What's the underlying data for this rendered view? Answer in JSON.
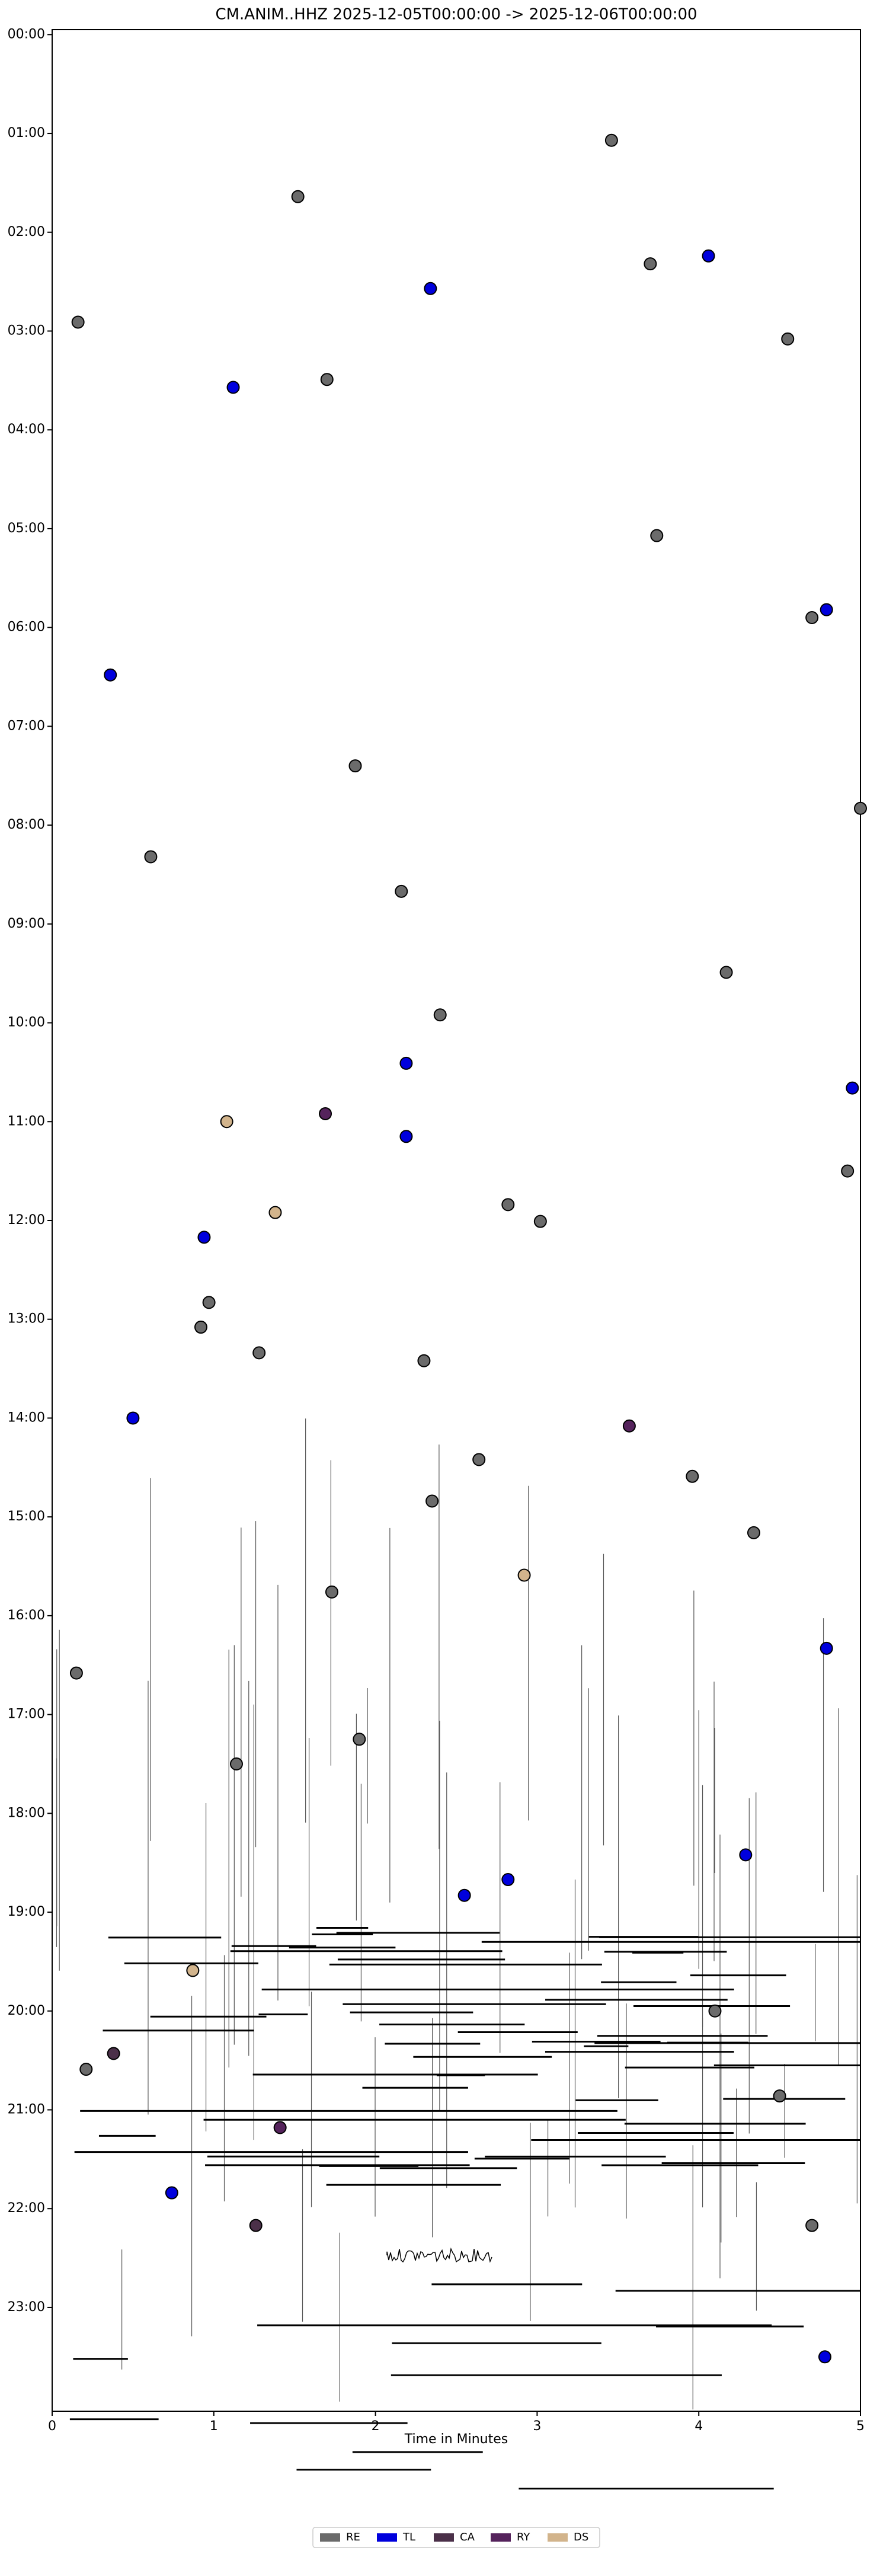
{
  "chart_data": {
    "type": "scatter",
    "title": "CM.ANIM..HHZ  2025-12-05T00:00:00 -> 2025-12-06T00:00:00",
    "x_label": "Time in Minutes",
    "xlim": [
      0,
      5
    ],
    "xticks": [
      0,
      1,
      2,
      3,
      4,
      5
    ],
    "ylim": [
      24.05,
      -0.05
    ],
    "yticks": [
      {
        "value": 0,
        "label": "00:00"
      },
      {
        "value": 1,
        "label": "01:00"
      },
      {
        "value": 2,
        "label": "02:00"
      },
      {
        "value": 3,
        "label": "03:00"
      },
      {
        "value": 4,
        "label": "04:00"
      },
      {
        "value": 5,
        "label": "05:00"
      },
      {
        "value": 6,
        "label": "06:00"
      },
      {
        "value": 7,
        "label": "07:00"
      },
      {
        "value": 8,
        "label": "08:00"
      },
      {
        "value": 9,
        "label": "09:00"
      },
      {
        "value": 10,
        "label": "10:00"
      },
      {
        "value": 11,
        "label": "11:00"
      },
      {
        "value": 12,
        "label": "12:00"
      },
      {
        "value": 13,
        "label": "13:00"
      },
      {
        "value": 14,
        "label": "14:00"
      },
      {
        "value": 15,
        "label": "15:00"
      },
      {
        "value": 16,
        "label": "16:00"
      },
      {
        "value": 17,
        "label": "17:00"
      },
      {
        "value": 18,
        "label": "18:00"
      },
      {
        "value": 19,
        "label": "19:00"
      },
      {
        "value": 20,
        "label": "20:00"
      },
      {
        "value": 21,
        "label": "21:00"
      },
      {
        "value": 22,
        "label": "22:00"
      },
      {
        "value": 23,
        "label": "23:00"
      }
    ],
    "legend_position": "bottom",
    "series": [
      {
        "name": "RE",
        "color": "#6b6b6b",
        "x": [
          3.46,
          1.52,
          3.7,
          0.16,
          4.55,
          1.7,
          3.74,
          4.7,
          1.875,
          5.0,
          0.61,
          2.16,
          4.17,
          2.4,
          4.92,
          2.82,
          3.02,
          0.97,
          0.92,
          1.28,
          2.3,
          2.64,
          3.96,
          2.35,
          4.34,
          1.73,
          0.15,
          1.9,
          1.14,
          4.1,
          0.21,
          4.5,
          4.7
        ],
        "values": [
          1.07,
          1.64,
          2.32,
          2.91,
          3.08,
          3.49,
          5.07,
          5.9,
          7.4,
          7.83,
          8.32,
          8.67,
          9.49,
          9.92,
          11.5,
          11.84,
          12.01,
          12.83,
          13.08,
          13.34,
          13.42,
          14.42,
          14.59,
          14.84,
          15.16,
          15.76,
          16.58,
          17.25,
          17.5,
          20.0,
          20.59,
          20.86,
          22.17
        ]
      },
      {
        "name": "TL",
        "color": "#0000dd",
        "x": [
          4.06,
          2.34,
          1.12,
          4.79,
          0.36,
          2.19,
          4.95,
          2.19,
          0.94,
          0.5,
          4.79,
          4.29,
          2.82,
          2.55,
          0.74,
          4.78
        ],
        "values": [
          2.24,
          2.57,
          3.57,
          5.82,
          6.48,
          10.41,
          10.66,
          11.15,
          12.17,
          14.0,
          16.33,
          18.42,
          18.67,
          18.83,
          21.84,
          23.5
        ]
      },
      {
        "name": "CA",
        "color": "#4b3049",
        "x": [
          0.38,
          1.26
        ],
        "values": [
          20.43,
          22.17
        ]
      },
      {
        "name": "RY",
        "color": "#55235c",
        "x": [
          1.69,
          3.57,
          1.41
        ],
        "values": [
          10.92,
          14.08,
          21.18
        ]
      },
      {
        "name": "DS",
        "color": "#d2b48c",
        "x": [
          1.08,
          1.38,
          2.92,
          0.87
        ],
        "values": [
          11.0,
          11.92,
          15.59,
          19.59
        ]
      }
    ]
  }
}
